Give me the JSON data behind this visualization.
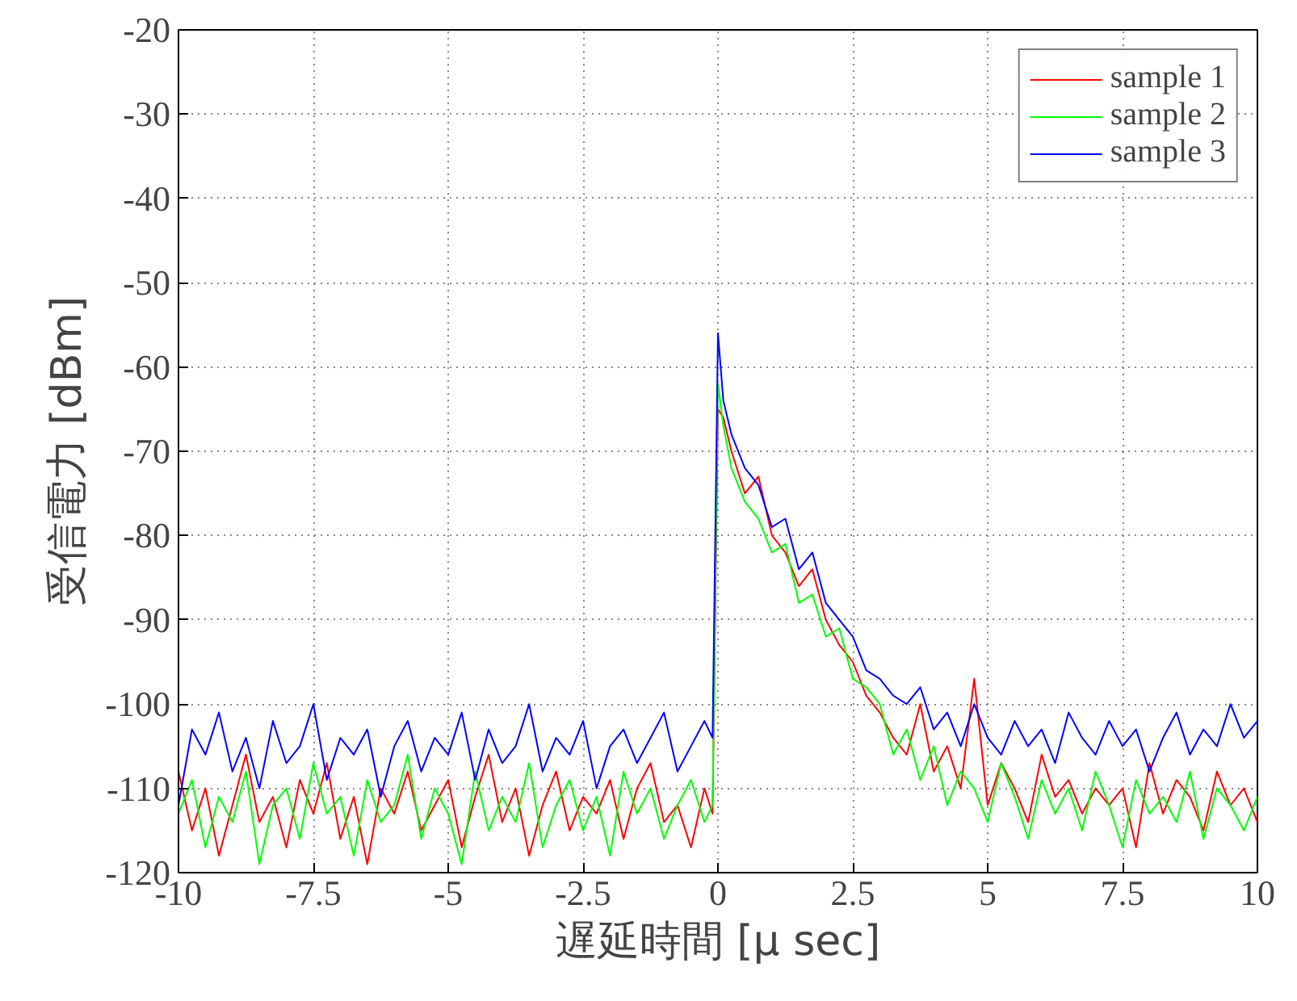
{
  "chart_data": {
    "type": "line",
    "xlabel": "遅延時間 [μ sec]",
    "ylabel": "受信電力 [dBm]",
    "xlim": [
      -10,
      10
    ],
    "xticks": [
      -10,
      -7.5,
      -5,
      -2.5,
      0,
      2.5,
      5,
      7.5,
      10
    ],
    "ylim": [
      -120,
      -20
    ],
    "yticks": [
      -120,
      -110,
      -100,
      -90,
      -80,
      -70,
      -60,
      -50,
      -40,
      -30,
      -20
    ],
    "grid": true,
    "legend": "top right",
    "line_style": "solid",
    "marker": "none",
    "x": [
      -10,
      -9.75,
      -9.5,
      -9.25,
      -9,
      -8.75,
      -8.5,
      -8.25,
      -8,
      -7.75,
      -7.5,
      -7.25,
      -7,
      -6.75,
      -6.5,
      -6.25,
      -6,
      -5.75,
      -5.5,
      -5.25,
      -5,
      -4.75,
      -4.5,
      -4.25,
      -4,
      -3.75,
      -3.5,
      -3.25,
      -3,
      -2.75,
      -2.5,
      -2.25,
      -2,
      -1.75,
      -1.5,
      -1.25,
      -1,
      -0.75,
      -0.5,
      -0.25,
      -0.1,
      0,
      0.1,
      0.25,
      0.5,
      0.75,
      1,
      1.25,
      1.5,
      1.75,
      2,
      2.25,
      2.5,
      2.75,
      3,
      3.25,
      3.5,
      3.75,
      4,
      4.25,
      4.5,
      4.75,
      5,
      5.25,
      5.5,
      5.75,
      6,
      6.25,
      6.5,
      6.75,
      7,
      7.25,
      7.5,
      7.75,
      8,
      8.25,
      8.5,
      8.75,
      9,
      9.25,
      9.5,
      9.75,
      10
    ],
    "series": [
      {
        "name": "sample 1",
        "color": "#ff0000",
        "values": [
          -108,
          -115,
          -110,
          -118,
          -112,
          -106,
          -114,
          -111,
          -117,
          -109,
          -113,
          -107,
          -116,
          -111,
          -119,
          -110,
          -113,
          -108,
          -115,
          -112,
          -109,
          -117,
          -111,
          -106,
          -114,
          -110,
          -118,
          -112,
          -108,
          -115,
          -111,
          -113,
          -109,
          -116,
          -110,
          -107,
          -114,
          -112,
          -117,
          -110,
          -113,
          -65,
          -66,
          -70,
          -75,
          -73,
          -80,
          -82,
          -86,
          -84,
          -90,
          -93,
          -95,
          -99,
          -101,
          -104,
          -106,
          -100,
          -108,
          -105,
          -110,
          -97,
          -112,
          -107,
          -110,
          -114,
          -106,
          -111,
          -109,
          -113,
          -110,
          -112,
          -110,
          -117,
          -107,
          -113,
          -109,
          -111,
          -115,
          -108,
          -112,
          -110,
          -114
        ]
      },
      {
        "name": "sample 2",
        "color": "#00ff00",
        "values": [
          -113,
          -109,
          -117,
          -111,
          -114,
          -108,
          -119,
          -112,
          -110,
          -116,
          -107,
          -113,
          -111,
          -118,
          -109,
          -114,
          -112,
          -106,
          -116,
          -110,
          -113,
          -119,
          -108,
          -115,
          -111,
          -114,
          -107,
          -117,
          -112,
          -109,
          -115,
          -111,
          -118,
          -108,
          -113,
          -110,
          -116,
          -112,
          -109,
          -114,
          -112,
          -62,
          -67,
          -72,
          -76,
          -78,
          -82,
          -81,
          -88,
          -87,
          -92,
          -91,
          -97,
          -98,
          -100,
          -106,
          -103,
          -109,
          -105,
          -112,
          -108,
          -110,
          -114,
          -107,
          -111,
          -116,
          -109,
          -113,
          -110,
          -115,
          -108,
          -112,
          -117,
          -109,
          -113,
          -111,
          -114,
          -108,
          -116,
          -110,
          -112,
          -115,
          -111
        ]
      },
      {
        "name": "sample 3",
        "color": "#0000ff",
        "values": [
          -112,
          -103,
          -106,
          -101,
          -108,
          -104,
          -110,
          -102,
          -107,
          -105,
          -100,
          -109,
          -104,
          -106,
          -103,
          -111,
          -105,
          -102,
          -108,
          -104,
          -106,
          -101,
          -109,
          -103,
          -107,
          -105,
          -100,
          -108,
          -104,
          -106,
          -102,
          -110,
          -105,
          -103,
          -107,
          -104,
          -101,
          -108,
          -105,
          -102,
          -104,
          -56,
          -64,
          -68,
          -72,
          -74,
          -79,
          -78,
          -84,
          -82,
          -88,
          -90,
          -92,
          -96,
          -97,
          -99,
          -100,
          -98,
          -103,
          -101,
          -105,
          -100,
          -104,
          -106,
          -102,
          -105,
          -103,
          -107,
          -101,
          -104,
          -106,
          -102,
          -105,
          -103,
          -108,
          -104,
          -101,
          -106,
          -103,
          -105,
          -100,
          -104,
          -102
        ]
      }
    ]
  }
}
